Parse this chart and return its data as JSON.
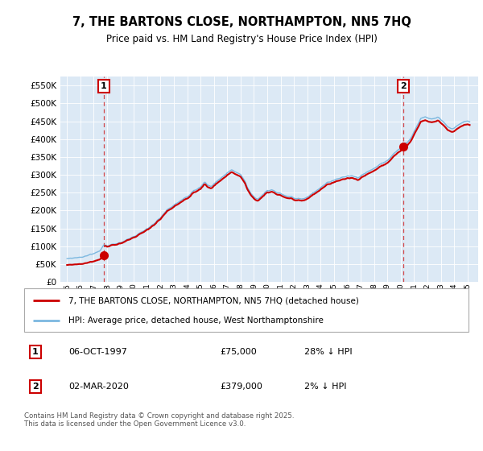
{
  "title": "7, THE BARTONS CLOSE, NORTHAMPTON, NN5 7HQ",
  "subtitle": "Price paid vs. HM Land Registry's House Price Index (HPI)",
  "legend_line1": "7, THE BARTONS CLOSE, NORTHAMPTON, NN5 7HQ (detached house)",
  "legend_line2": "HPI: Average price, detached house, West Northamptonshire",
  "footnote": "Contains HM Land Registry data © Crown copyright and database right 2025.\nThis data is licensed under the Open Government Licence v3.0.",
  "annotation1_date": "06-OCT-1997",
  "annotation1_price": "£75,000",
  "annotation1_hpi": "28% ↓ HPI",
  "annotation2_date": "02-MAR-2020",
  "annotation2_price": "£379,000",
  "annotation2_hpi": "2% ↓ HPI",
  "sale1_year": 1997.76,
  "sale1_price": 75000,
  "sale2_year": 2020.17,
  "sale2_price": 379000,
  "hpi_color": "#7cb8e0",
  "sale_color": "#cc0000",
  "plot_bg": "#dce9f5",
  "ylim_min": 0,
  "ylim_max": 575000,
  "xlim_min": 1994.5,
  "xlim_max": 2025.8,
  "yticks": [
    0,
    50000,
    100000,
    150000,
    200000,
    250000,
    300000,
    350000,
    400000,
    450000,
    500000,
    550000
  ],
  "xticks": [
    1995,
    1996,
    1997,
    1998,
    1999,
    2000,
    2001,
    2002,
    2003,
    2004,
    2005,
    2006,
    2007,
    2008,
    2009,
    2010,
    2011,
    2012,
    2013,
    2014,
    2015,
    2016,
    2017,
    2018,
    2019,
    2020,
    2021,
    2022,
    2023,
    2024,
    2025
  ]
}
